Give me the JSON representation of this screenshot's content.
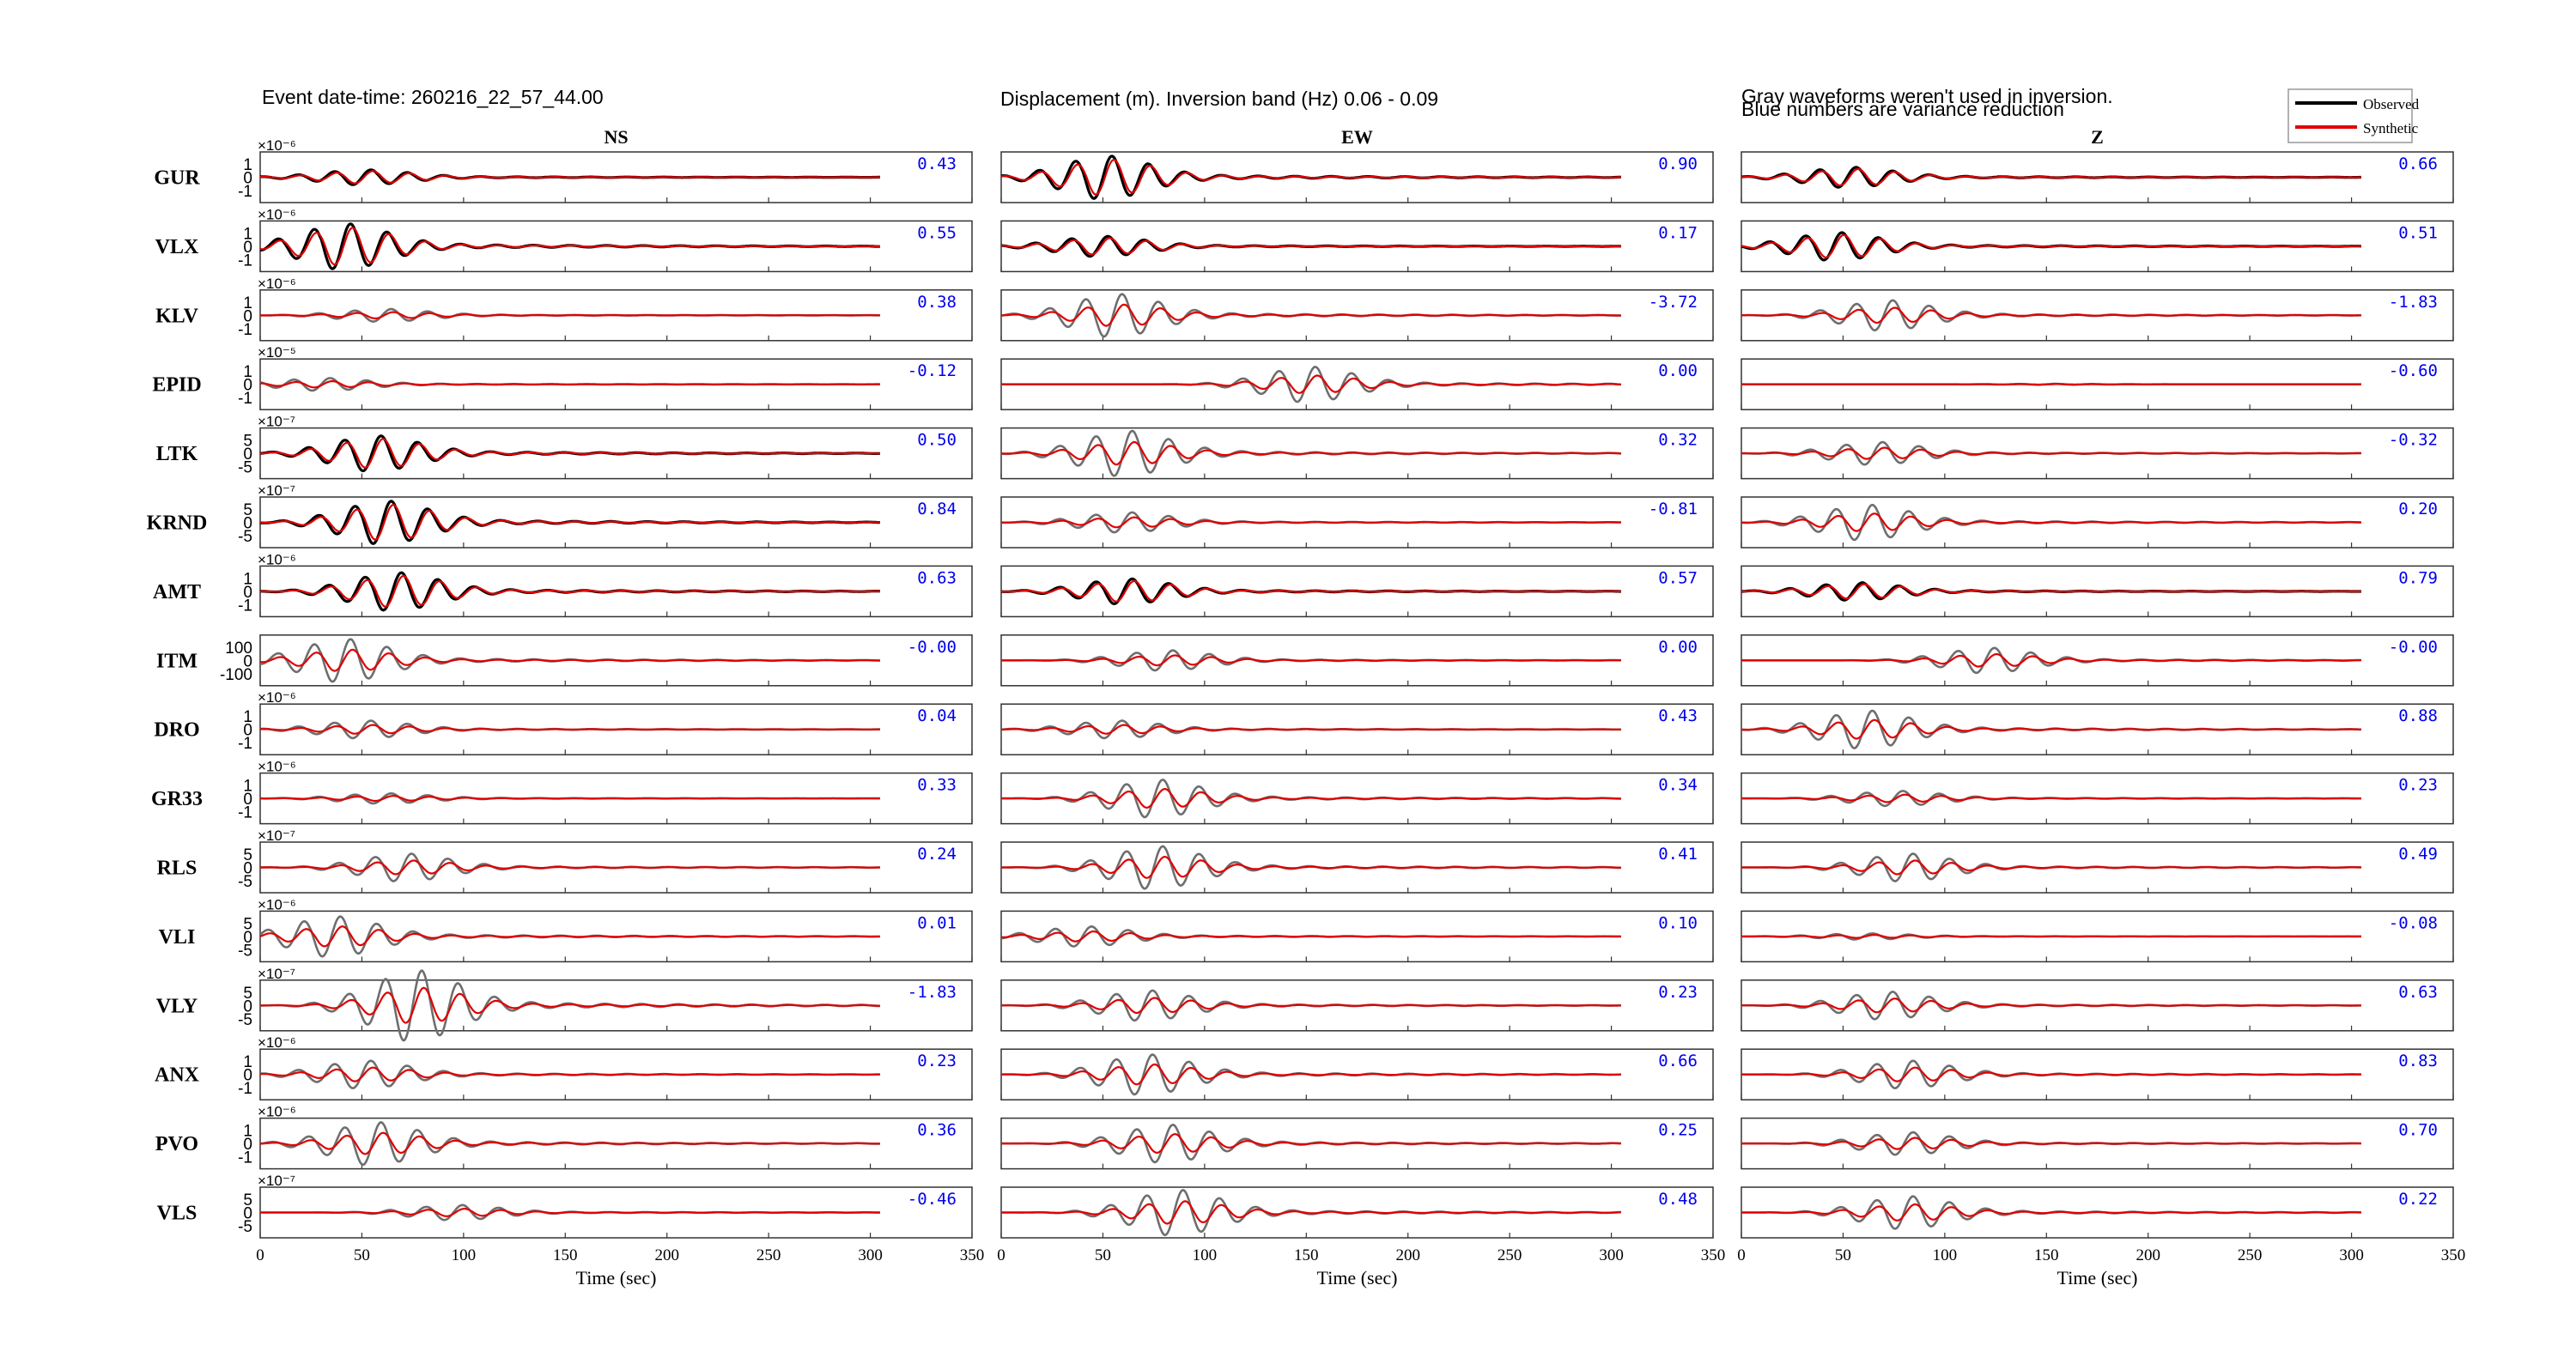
{
  "header": {
    "event": "Event  date-time:  260216_22_57_44.00",
    "band": "Displacement (m).  Inversion band (Hz)  0.06 - 0.09",
    "note1": "Gray waveforms weren't used in inversion.",
    "note2": "Blue numbers are variance reduction"
  },
  "legend": {
    "observed": "Observed",
    "synthetic": "Synthetic",
    "observed_color": "#000000",
    "synthetic_color": "#e00000",
    "unused_color": "#6e6e6e",
    "vr_color": "#0000ee"
  },
  "chart_data": {
    "type": "line",
    "components": [
      "NS",
      "EW",
      "Z"
    ],
    "xlabel": "Time (sec)",
    "xlim": [
      0,
      350
    ],
    "xticks": [
      "0",
      "50",
      "100",
      "150",
      "200",
      "250",
      "300",
      "350"
    ],
    "stations": [
      {
        "name": "GUR",
        "exp": "×10⁻⁶",
        "yticks": [
          "1",
          "0",
          "-1"
        ],
        "vr": [
          "0.43",
          "0.90",
          "0.66"
        ],
        "used": [
          true,
          true,
          true
        ],
        "wave": [
          {
            "t0": 50,
            "amp": 0.3
          },
          {
            "t0": 50,
            "amp": 0.85
          },
          {
            "t0": 52,
            "amp": 0.4
          }
        ]
      },
      {
        "name": "VLX",
        "exp": "×10⁻⁶",
        "yticks": [
          "1",
          "0",
          "-1"
        ],
        "vr": [
          "0.55",
          "0.17",
          "0.51"
        ],
        "used": [
          true,
          true,
          true
        ],
        "wave": [
          {
            "t0": 40,
            "amp": 0.9
          },
          {
            "t0": 48,
            "amp": 0.4
          },
          {
            "t0": 45,
            "amp": 0.55
          }
        ]
      },
      {
        "name": "KLV",
        "exp": "×10⁻⁶",
        "yticks": [
          "1",
          "0",
          "-1"
        ],
        "vr": [
          "0.38",
          "-3.72",
          "-1.83"
        ],
        "used": [
          false,
          false,
          false
        ],
        "wave": [
          {
            "t0": 60,
            "amp": 0.25
          },
          {
            "t0": 55,
            "amp": 0.85
          },
          {
            "t0": 70,
            "amp": 0.6
          }
        ]
      },
      {
        "name": "EPID",
        "exp": "×10⁻⁵",
        "yticks": [
          "1",
          "0",
          "-1"
        ],
        "vr": [
          "-0.12",
          "0.00",
          "-0.60"
        ],
        "used": [
          false,
          false,
          false
        ],
        "wave": [
          {
            "t0": 30,
            "amp": 0.25
          },
          {
            "t0": 150,
            "amp": 0.7
          },
          {
            "t0": 150,
            "amp": 0.02
          }
        ]
      },
      {
        "name": "LTK",
        "exp": "×10⁻⁷",
        "yticks": [
          "5",
          "0",
          "-5"
        ],
        "vr": [
          "0.50",
          "0.32",
          "-0.32"
        ],
        "used": [
          true,
          false,
          false
        ],
        "wave": [
          {
            "t0": 55,
            "amp": 0.7
          },
          {
            "t0": 60,
            "amp": 0.9
          },
          {
            "t0": 65,
            "amp": 0.45
          }
        ]
      },
      {
        "name": "KRND",
        "exp": "×10⁻⁷",
        "yticks": [
          "5",
          "0",
          "-5"
        ],
        "vr": [
          "0.84",
          "-0.81",
          "0.20"
        ],
        "used": [
          true,
          false,
          false
        ],
        "wave": [
          {
            "t0": 60,
            "amp": 0.85
          },
          {
            "t0": 60,
            "amp": 0.4
          },
          {
            "t0": 60,
            "amp": 0.7
          }
        ]
      },
      {
        "name": "AMT",
        "exp": "×10⁻⁶",
        "yticks": [
          "1",
          "0",
          "-1"
        ],
        "vr": [
          "0.63",
          "0.57",
          "0.79"
        ],
        "used": [
          true,
          true,
          true
        ],
        "wave": [
          {
            "t0": 65,
            "amp": 0.75
          },
          {
            "t0": 60,
            "amp": 0.5
          },
          {
            "t0": 55,
            "amp": 0.35
          }
        ]
      },
      {
        "name": "ITM",
        "exp": "",
        "yticks": [
          "100",
          "0",
          "-100"
        ],
        "vr": [
          "-0.00",
          "0.00",
          "-0.00"
        ],
        "used": [
          false,
          false,
          false
        ],
        "wave": [
          {
            "t0": 40,
            "amp": 0.85
          },
          {
            "t0": 80,
            "amp": 0.4
          },
          {
            "t0": 120,
            "amp": 0.5
          }
        ]
      },
      {
        "name": "DRO",
        "exp": "×10⁻⁶",
        "yticks": [
          "1",
          "0",
          "-1"
        ],
        "vr": [
          "0.04",
          "0.43",
          "0.88"
        ],
        "used": [
          false,
          false,
          false
        ],
        "wave": [
          {
            "t0": 50,
            "amp": 0.35
          },
          {
            "t0": 55,
            "amp": 0.35
          },
          {
            "t0": 60,
            "amp": 0.75
          }
        ]
      },
      {
        "name": "GR33",
        "exp": "×10⁻⁶",
        "yticks": [
          "1",
          "0",
          "-1"
        ],
        "vr": [
          "0.33",
          "0.34",
          "0.23"
        ],
        "used": [
          false,
          false,
          false
        ],
        "wave": [
          {
            "t0": 60,
            "amp": 0.2
          },
          {
            "t0": 75,
            "amp": 0.75
          },
          {
            "t0": 75,
            "amp": 0.3
          }
        ]
      },
      {
        "name": "RLS",
        "exp": "×10⁻⁷",
        "yticks": [
          "5",
          "0",
          "-5"
        ],
        "vr": [
          "0.24",
          "0.41",
          "0.49"
        ],
        "used": [
          false,
          false,
          false
        ],
        "wave": [
          {
            "t0": 70,
            "amp": 0.55
          },
          {
            "t0": 75,
            "amp": 0.85
          },
          {
            "t0": 80,
            "amp": 0.55
          }
        ]
      },
      {
        "name": "VLI",
        "exp": "×10⁻⁶",
        "yticks": [
          "5",
          "0",
          "-5"
        ],
        "vr": [
          "0.01",
          "0.10",
          "-0.08"
        ],
        "used": [
          false,
          false,
          false
        ],
        "wave": [
          {
            "t0": 35,
            "amp": 0.8
          },
          {
            "t0": 40,
            "amp": 0.4
          },
          {
            "t0": 60,
            "amp": 0.12
          }
        ]
      },
      {
        "name": "VLY",
        "exp": "×10⁻⁷",
        "yticks": [
          "5",
          "0",
          "-5"
        ],
        "vr": [
          "-1.83",
          "0.23",
          "0.63"
        ],
        "used": [
          false,
          false,
          false
        ],
        "wave": [
          {
            "t0": 75,
            "amp": 1.4
          },
          {
            "t0": 70,
            "amp": 0.6
          },
          {
            "t0": 70,
            "amp": 0.55
          }
        ]
      },
      {
        "name": "ANX",
        "exp": "×10⁻⁶",
        "yticks": [
          "1",
          "0",
          "-1"
        ],
        "vr": [
          "0.23",
          "0.66",
          "0.83"
        ],
        "used": [
          false,
          false,
          false
        ],
        "wave": [
          {
            "t0": 50,
            "amp": 0.55
          },
          {
            "t0": 70,
            "amp": 0.8
          },
          {
            "t0": 80,
            "amp": 0.55
          }
        ]
      },
      {
        "name": "PVO",
        "exp": "×10⁻⁶",
        "yticks": [
          "1",
          "0",
          "-1"
        ],
        "vr": [
          "0.36",
          "0.25",
          "0.70"
        ],
        "used": [
          false,
          false,
          false
        ],
        "wave": [
          {
            "t0": 55,
            "amp": 0.85
          },
          {
            "t0": 80,
            "amp": 0.75
          },
          {
            "t0": 80,
            "amp": 0.45
          }
        ]
      },
      {
        "name": "VLS",
        "exp": "×10⁻⁷",
        "yticks": [
          "5",
          "0",
          "-5"
        ],
        "vr": [
          "-0.46",
          "0.48",
          "0.22"
        ],
        "used": [
          false,
          false,
          false
        ],
        "wave": [
          {
            "t0": 95,
            "amp": 0.3
          },
          {
            "t0": 85,
            "amp": 0.9
          },
          {
            "t0": 80,
            "amp": 0.65
          }
        ]
      }
    ]
  }
}
